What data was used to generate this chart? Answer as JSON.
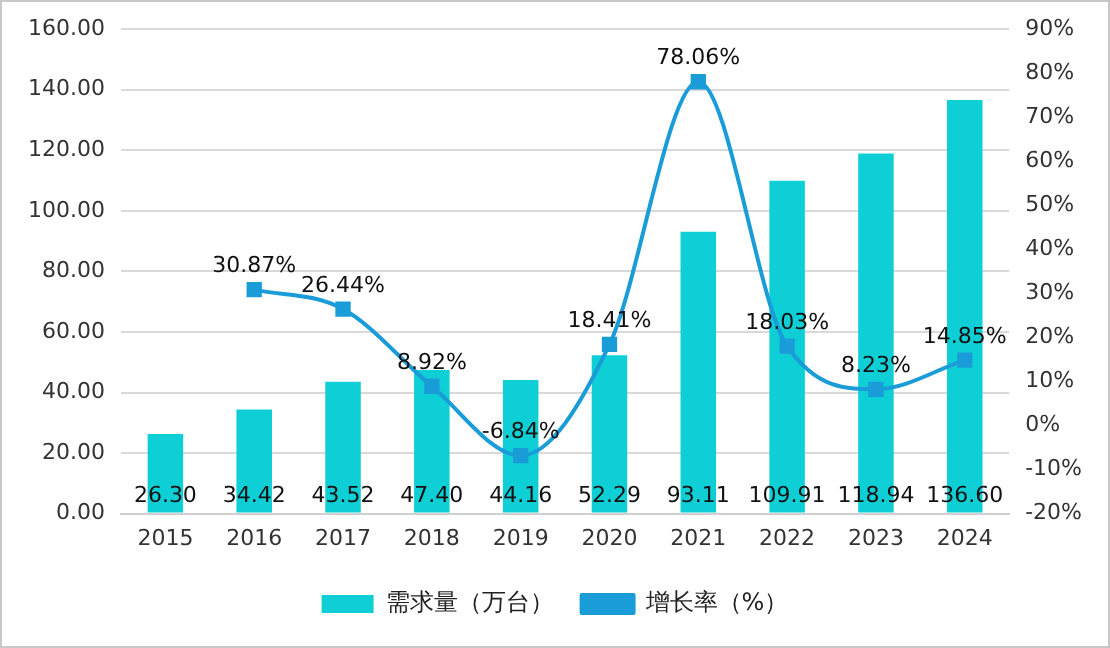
{
  "chart_data": {
    "type": "bar",
    "categories": [
      "2015",
      "2016",
      "2017",
      "2018",
      "2019",
      "2020",
      "2021",
      "2022",
      "2023",
      "2024"
    ],
    "series": [
      {
        "name": "需求量（万台）",
        "color": "#0fcfd6",
        "values": [
          26.3,
          34.42,
          43.52,
          47.4,
          44.16,
          52.29,
          93.11,
          109.91,
          118.94,
          136.6
        ],
        "value_labels": [
          "26.30",
          "34.42",
          "43.52",
          "47.40",
          "44.16",
          "52.29",
          "93.11",
          "109.91",
          "118.94",
          "136.60"
        ]
      },
      {
        "name": "增长率（%）",
        "type": "line",
        "axis": "y2",
        "color": "#1a9cd8",
        "marker": "square",
        "values": [
          null,
          30.87,
          26.44,
          8.92,
          -6.84,
          18.41,
          78.06,
          18.03,
          8.23,
          14.85
        ],
        "value_labels": [
          null,
          "30.87%",
          "26.44%",
          "8.92%",
          "-6.84%",
          "18.41%",
          "78.06%",
          "18.03%",
          "8.23%",
          "14.85%"
        ]
      }
    ],
    "ylim": [
      0,
      160
    ],
    "yticks": [
      {
        "value": 0,
        "label": "0.00"
      },
      {
        "value": 20,
        "label": "20.00"
      },
      {
        "value": 40,
        "label": "40.00"
      },
      {
        "value": 60,
        "label": "60.00"
      },
      {
        "value": 80,
        "label": "80.00"
      },
      {
        "value": 100,
        "label": "100.00"
      },
      {
        "value": 120,
        "label": "120.00"
      },
      {
        "value": 140,
        "label": "140.00"
      },
      {
        "value": 160,
        "label": "160.00"
      }
    ],
    "y2lim": [
      -20,
      90
    ],
    "y2ticks": [
      {
        "value": -20,
        "label": "-20%"
      },
      {
        "value": -10,
        "label": "-10%"
      },
      {
        "value": 0,
        "label": "0%"
      },
      {
        "value": 10,
        "label": "10%"
      },
      {
        "value": 20,
        "label": "20%"
      },
      {
        "value": 30,
        "label": "30%"
      },
      {
        "value": 40,
        "label": "40%"
      },
      {
        "value": 50,
        "label": "50%"
      },
      {
        "value": 60,
        "label": "60%"
      },
      {
        "value": 70,
        "label": "70%"
      },
      {
        "value": 80,
        "label": "80%"
      },
      {
        "value": 90,
        "label": "90%"
      }
    ],
    "grid": "y",
    "legend": "bottom"
  }
}
